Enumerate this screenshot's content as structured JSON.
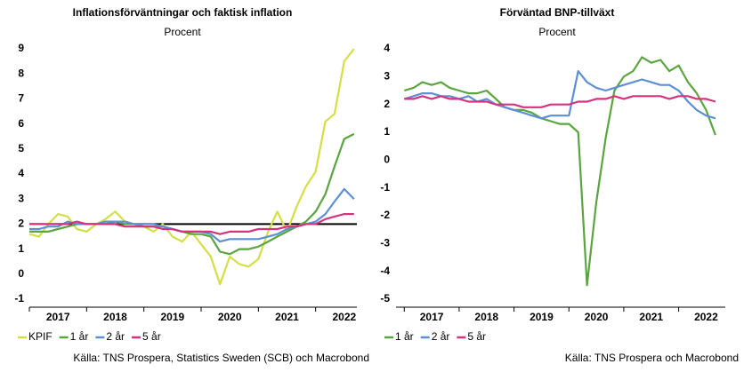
{
  "chart_data": [
    {
      "type": "line",
      "title": "Inflationsförväntningar och faktisk inflation",
      "subtitle": "Procent",
      "source": "Källa: TNS Prospera, Statistics Sweden (SCB) och Macrobond",
      "x": [
        2017,
        2017.17,
        2017.33,
        2017.5,
        2017.67,
        2017.83,
        2018,
        2018.17,
        2018.33,
        2018.5,
        2018.67,
        2018.83,
        2019,
        2019.17,
        2019.33,
        2019.5,
        2019.67,
        2019.83,
        2020,
        2020.17,
        2020.33,
        2020.5,
        2020.67,
        2020.83,
        2021,
        2021.17,
        2021.33,
        2021.5,
        2021.67,
        2021.83,
        2022,
        2022.17,
        2022.33,
        2022.5,
        2022.67
      ],
      "series": [
        {
          "name": "KPIF",
          "color": "#d4de45",
          "values": [
            1.6,
            1.5,
            2.0,
            2.4,
            2.3,
            1.8,
            1.7,
            2.0,
            2.2,
            2.5,
            2.1,
            2.0,
            1.9,
            1.7,
            2.0,
            1.5,
            1.3,
            1.7,
            1.2,
            0.7,
            -0.4,
            0.7,
            0.4,
            0.3,
            0.6,
            1.7,
            2.5,
            1.7,
            2.7,
            3.5,
            4.1,
            6.1,
            6.4,
            8.5,
            9.0
          ]
        },
        {
          "name": "1 år",
          "color": "#5aa540",
          "values": [
            1.7,
            1.7,
            1.7,
            1.8,
            1.9,
            2.0,
            2.0,
            2.0,
            2.0,
            2.1,
            2.0,
            2.0,
            1.9,
            1.9,
            1.9,
            1.8,
            1.7,
            1.6,
            1.6,
            1.5,
            0.9,
            0.8,
            1.0,
            1.0,
            1.1,
            1.3,
            1.5,
            1.7,
            1.9,
            2.1,
            2.5,
            3.2,
            4.3,
            5.4,
            5.6
          ]
        },
        {
          "name": "2 år",
          "color": "#5d8fd6",
          "values": [
            1.8,
            1.8,
            1.9,
            1.9,
            2.1,
            2.0,
            2.0,
            2.0,
            2.1,
            2.1,
            2.1,
            2.0,
            2.0,
            2.0,
            1.9,
            1.8,
            1.7,
            1.7,
            1.7,
            1.6,
            1.3,
            1.4,
            1.4,
            1.4,
            1.4,
            1.5,
            1.6,
            1.8,
            1.9,
            2.0,
            2.1,
            2.4,
            2.9,
            3.4,
            3.0
          ]
        },
        {
          "name": "5 år",
          "color": "#d6337f",
          "values": [
            2.0,
            2.0,
            2.0,
            2.0,
            2.0,
            2.1,
            2.0,
            2.0,
            2.0,
            2.0,
            1.9,
            1.9,
            1.9,
            1.9,
            1.8,
            1.8,
            1.7,
            1.7,
            1.7,
            1.7,
            1.6,
            1.7,
            1.7,
            1.7,
            1.8,
            1.8,
            1.8,
            1.9,
            1.9,
            2.0,
            2.0,
            2.2,
            2.3,
            2.4,
            2.4
          ]
        }
      ],
      "hline": 2,
      "hline_color": "#000000",
      "xlim": [
        2017,
        2022.72
      ],
      "xticks": [
        2017,
        2018,
        2019,
        2020,
        2021,
        2022
      ],
      "ylim": [
        -1,
        9
      ],
      "yticks": [
        -1,
        0,
        1,
        2,
        3,
        4,
        5,
        6,
        7,
        8,
        9
      ]
    },
    {
      "type": "line",
      "title": "Förväntad BNP-tillväxt",
      "subtitle": "Procent",
      "source": "Källa: TNS Prospera och Macrobond",
      "x": [
        2017,
        2017.17,
        2017.33,
        2017.5,
        2017.67,
        2017.83,
        2018,
        2018.17,
        2018.33,
        2018.5,
        2018.67,
        2018.83,
        2019,
        2019.17,
        2019.33,
        2019.5,
        2019.67,
        2019.83,
        2020,
        2020.17,
        2020.33,
        2020.5,
        2020.67,
        2020.83,
        2021,
        2021.17,
        2021.33,
        2021.5,
        2021.67,
        2021.83,
        2022,
        2022.17,
        2022.33,
        2022.5,
        2022.67
      ],
      "series": [
        {
          "name": "1 år",
          "color": "#5aa540",
          "values": [
            2.5,
            2.6,
            2.8,
            2.7,
            2.8,
            2.6,
            2.5,
            2.4,
            2.4,
            2.5,
            2.2,
            1.9,
            1.8,
            1.8,
            1.7,
            1.5,
            1.4,
            1.3,
            1.3,
            1.0,
            -4.5,
            -1.5,
            0.8,
            2.5,
            3.0,
            3.2,
            3.7,
            3.5,
            3.6,
            3.2,
            3.4,
            2.8,
            2.4,
            1.8,
            0.9
          ]
        },
        {
          "name": "2 år",
          "color": "#5d8fd6",
          "values": [
            2.2,
            2.3,
            2.4,
            2.4,
            2.3,
            2.3,
            2.2,
            2.3,
            2.1,
            2.2,
            2.0,
            1.9,
            1.8,
            1.7,
            1.6,
            1.5,
            1.6,
            1.6,
            1.6,
            3.2,
            2.8,
            2.6,
            2.5,
            2.6,
            2.7,
            2.8,
            2.9,
            2.8,
            2.7,
            2.7,
            2.5,
            2.1,
            1.8,
            1.6,
            1.5
          ]
        },
        {
          "name": "5 år",
          "color": "#d6337f",
          "values": [
            2.2,
            2.2,
            2.3,
            2.2,
            2.3,
            2.2,
            2.2,
            2.1,
            2.1,
            2.1,
            2.0,
            2.0,
            2.0,
            1.9,
            1.9,
            1.9,
            2.0,
            2.0,
            2.0,
            2.1,
            2.1,
            2.2,
            2.2,
            2.3,
            2.2,
            2.3,
            2.3,
            2.3,
            2.3,
            2.2,
            2.3,
            2.3,
            2.2,
            2.2,
            2.1
          ]
        }
      ],
      "xlim": [
        2016.85,
        2022.85
      ],
      "xticks": [
        2017,
        2018,
        2019,
        2020,
        2021,
        2022
      ],
      "ylim": [
        -5,
        4
      ],
      "yticks": [
        -5,
        -4,
        -3,
        -2,
        -1,
        0,
        1,
        2,
        3,
        4
      ]
    }
  ]
}
